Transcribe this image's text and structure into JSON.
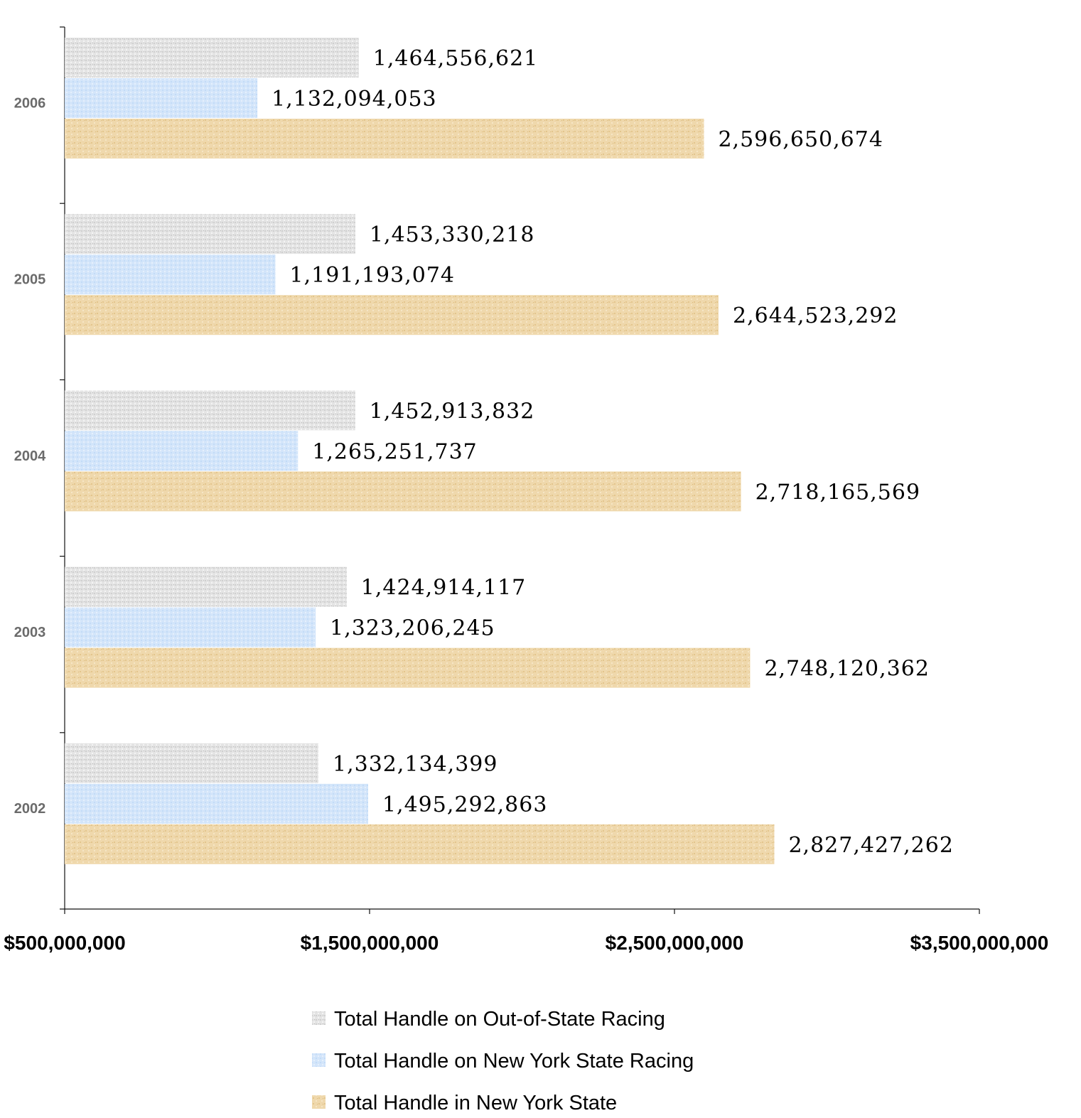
{
  "chart_data": {
    "type": "bar",
    "orientation": "horizontal",
    "categories": [
      "2006",
      "2005",
      "2004",
      "2003",
      "2002"
    ],
    "series": [
      {
        "name": "Total Handle on Out-of-State Racing",
        "color": "#e3e3e3",
        "values": [
          1464556621,
          1453330218,
          1452913832,
          1424914117,
          1332134399
        ],
        "labels": [
          "1,464,556,621",
          "1,453,330,218",
          "1,452,913,832",
          "1,424,914,117",
          "1,332,134,399"
        ]
      },
      {
        "name": "Total Handle on New York State Racing",
        "color": "#d4e6fa",
        "values": [
          1132094053,
          1191193074,
          1265251737,
          1323206245,
          1495292863
        ],
        "labels": [
          "1,132,094,053",
          "1,191,193,074",
          "1,265,251,737",
          "1,323,206,245",
          "1,495,292,863"
        ]
      },
      {
        "name": "Total Handle in New York State",
        "color": "#efd8ac",
        "values": [
          2596650674,
          2644523292,
          2718165569,
          2748120362,
          2827427262
        ],
        "labels": [
          "2,596,650,674",
          "2,644,523,292",
          "2,718,165,569",
          "2,748,120,362",
          "2,827,427,262"
        ]
      }
    ],
    "xlim": [
      500000000,
      3500000000
    ],
    "x_ticks": [
      500000000,
      1500000000,
      2500000000,
      3500000000
    ],
    "x_tick_labels": [
      "$500,000,000",
      "$1,500,000,000",
      "$2,500,000,000",
      "$3,500,000,000"
    ],
    "title": "",
    "xlabel": "",
    "ylabel": "",
    "grid": false,
    "legend_position": "bottom"
  }
}
